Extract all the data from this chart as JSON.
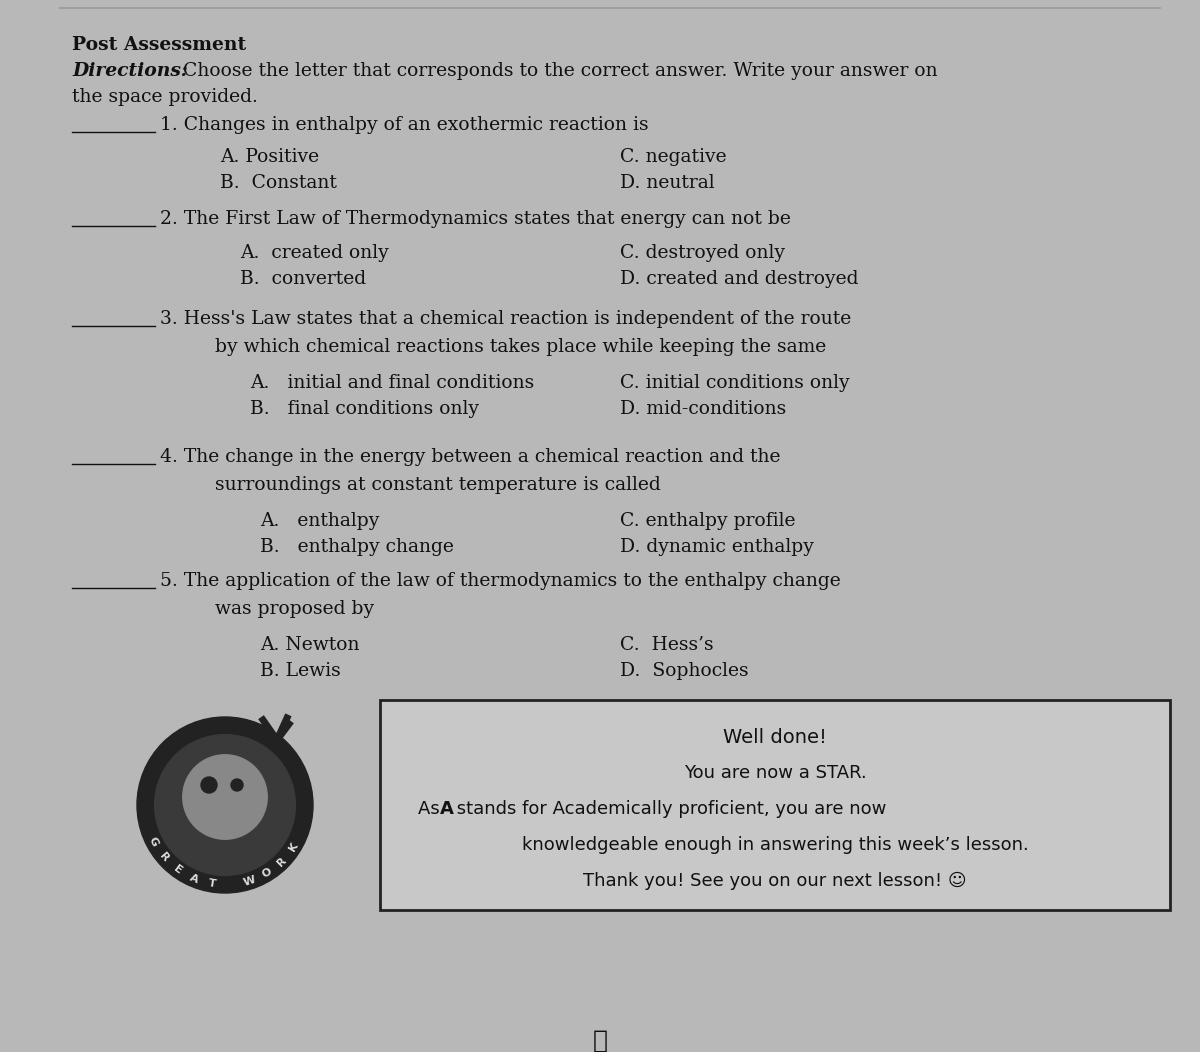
{
  "bg_color": "#b8b8b8",
  "title": "Post Assessment",
  "directions_bold": "Directions:",
  "directions_rest": " Choose the letter that corresponds to the correct answer. Write your answer on",
  "directions_line2": "the space provided.",
  "q1_text": "1. Changes in enthalpy of an exothermic reaction is",
  "q1_A": "A. Positive",
  "q1_B": "B.  Constant",
  "q1_C": "C. negative",
  "q1_D": "D. neutral",
  "q2_text": "2. The First Law of Thermodynamics states that energy can not be",
  "q2_A": "A.  created only",
  "q2_B": "B.  converted",
  "q2_C": "C. destroyed only",
  "q2_D": "D. created and destroyed",
  "q3_text": "3. Hess's Law states that a chemical reaction is independent of the route",
  "q3_text2": "     by which chemical reactions takes place while keeping the same",
  "q3_A": "A.   initial and final conditions",
  "q3_B": "B.   final conditions only",
  "q3_C": "C. initial conditions only",
  "q3_D": "D. mid-conditions",
  "q4_text": "4. The change in the energy between a chemical reaction and the",
  "q4_text2": "     surroundings at constant temperature is called",
  "q4_A": "A.   enthalpy",
  "q4_B": "B.   enthalpy change",
  "q4_C": "C. enthalpy profile",
  "q4_D": "D. dynamic enthalpy",
  "q5_text": "5. The application of the law of thermodynamics to the enthalpy change",
  "q5_text2": "     was proposed by",
  "q5_A": "A. Newton",
  "q5_B": "B. Lewis",
  "q5_C": "C.  Hess’s",
  "q5_D": "D.  Sophocles",
  "well_line1": "Well done!",
  "well_line2": "You are now a STAR.",
  "well_line3a": "As ",
  "well_line3b": "A",
  "well_line3c": " stands for Academically proficient, you are now",
  "well_line4": "knowledgeable enough in answering this week’s lesson.",
  "well_line5": "Thank you! See you on our next lesson! ☺",
  "page_mark": "ℓ",
  "text_color": "#111111",
  "line_color": "#333333",
  "box_edge_color": "#222222",
  "box_face_color": "#c8c8c8"
}
